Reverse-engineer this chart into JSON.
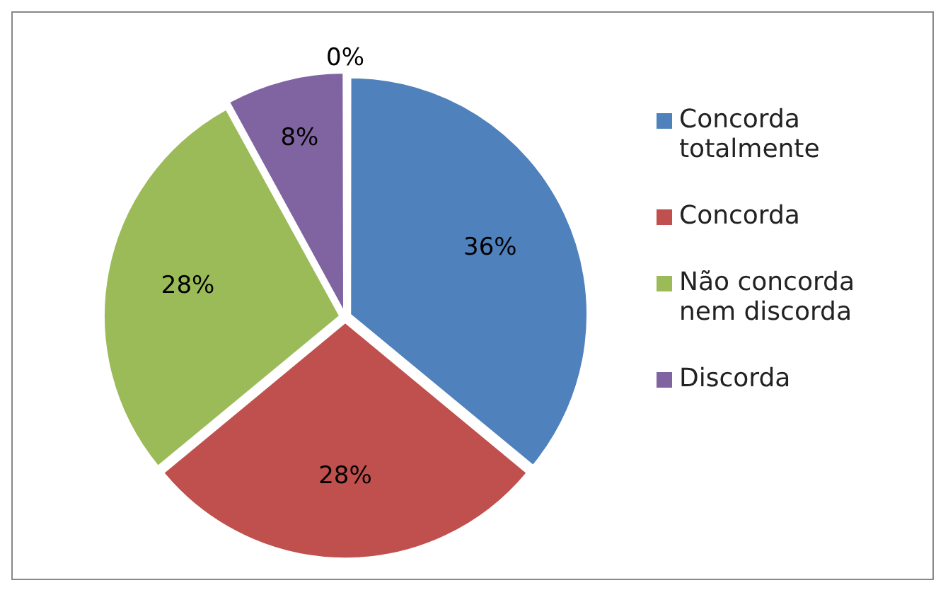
{
  "chart_data": {
    "type": "pie",
    "categories": [
      "Concorda totalmente",
      "Concorda",
      "Não concorda nem discorda",
      "Discorda",
      null
    ],
    "values": [
      36,
      28,
      28,
      8,
      0
    ],
    "colors": [
      "#4f81bd",
      "#c0504d",
      "#9bbb59",
      "#8064a2",
      "#4bacc6"
    ],
    "value_labels": [
      "36%",
      "28%",
      "28%",
      "8%",
      "0%"
    ],
    "legend": "right"
  }
}
